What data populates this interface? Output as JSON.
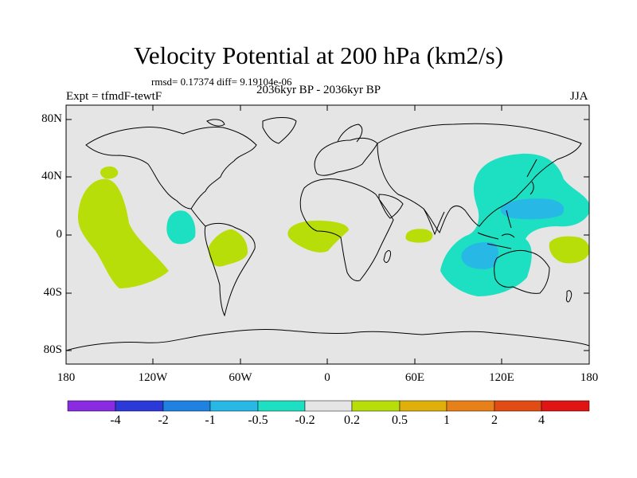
{
  "title": "Velocity Potential at 200 hPa (km2/s)",
  "stats": "rmsd= 0.17374 diff= 9.19104e-06",
  "period": "2036kyr BP - 2036kyr BP",
  "experiment": "Expt = tfmdF-tewtF",
  "season": "JJA",
  "lat_labels": [
    "80N",
    "40N",
    "0",
    "40S",
    "80S"
  ],
  "lon_labels": [
    "180",
    "120W",
    "60W",
    "0",
    "60E",
    "120E",
    "180"
  ],
  "colorbar": {
    "labels": [
      "-4",
      "-2",
      "-1",
      "-0.5",
      "-0.2",
      "0.2",
      "0.5",
      "1",
      "2",
      "4"
    ],
    "colors": [
      "#8a2be2",
      "#2b39d9",
      "#1f82e0",
      "#27b8e6",
      "#1de0c2",
      "#e5e5e5",
      "#b8de0a",
      "#e0b00a",
      "#e8801a",
      "#e04c14",
      "#e01414"
    ]
  },
  "map_background": "#e5e5e5",
  "anomaly_regions": [
    {
      "name": "central-pacific-positive",
      "level": "0.2 to 0.5",
      "color": "#b8de0a"
    },
    {
      "name": "east-pacific-negative",
      "level": "-0.2 to -0.5",
      "color": "#1de0c2"
    },
    {
      "name": "south-america-positive",
      "level": "0.2 to 0.5",
      "color": "#b8de0a"
    },
    {
      "name": "atlantic-africa-positive",
      "level": "0.2 to 0.5",
      "color": "#b8de0a"
    },
    {
      "name": "indian-ocean-positive",
      "level": "0.2 to 0.5",
      "color": "#b8de0a"
    },
    {
      "name": "asia-west-pacific-negative",
      "level": "-0.2 to -0.5",
      "color": "#1de0c2"
    },
    {
      "name": "west-pacific-core-negative",
      "level": "-0.5 to -1",
      "color": "#27b8e6"
    },
    {
      "name": "indian-ocean-core-negative",
      "level": "-0.5 to -1",
      "color": "#27b8e6"
    },
    {
      "name": "southwest-pacific-positive",
      "level": "0.2 to 0.5",
      "color": "#b8de0a"
    }
  ]
}
